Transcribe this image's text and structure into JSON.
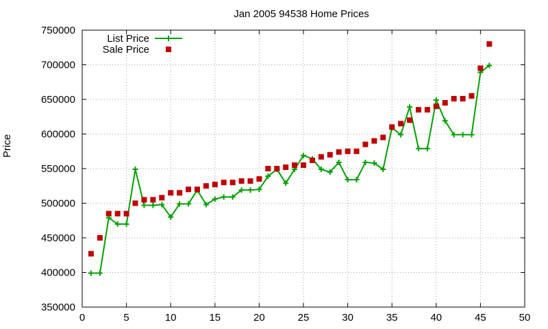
{
  "chart_data": {
    "type": "line",
    "title": "Jan 2005 94538 Home Prices",
    "xlabel": "",
    "ylabel": "Price",
    "xlim": [
      0,
      50
    ],
    "ylim": [
      350000,
      750000
    ],
    "xticks": [
      0,
      5,
      10,
      15,
      20,
      25,
      30,
      35,
      40,
      45,
      50
    ],
    "yticks": [
      350000,
      400000,
      450000,
      500000,
      550000,
      600000,
      650000,
      700000,
      750000
    ],
    "grid": true,
    "legend_position": "top-left",
    "series": [
      {
        "name": "List Price",
        "style": "line+cross",
        "color": "#00a000",
        "x": [
          1,
          2,
          3,
          4,
          5,
          6,
          7,
          8,
          9,
          10,
          11,
          12,
          13,
          14,
          15,
          16,
          17,
          18,
          19,
          20,
          21,
          22,
          23,
          24,
          25,
          26,
          27,
          28,
          29,
          30,
          31,
          32,
          33,
          34,
          35,
          36,
          37,
          38,
          39,
          40,
          41,
          42,
          43,
          44,
          45,
          46
        ],
        "y": [
          399000,
          399000,
          479000,
          469900,
          469900,
          549000,
          497000,
          497000,
          498000,
          480000,
          499000,
          499000,
          519000,
          498000,
          506000,
          509000,
          509000,
          519000,
          519000,
          520000,
          539000,
          549000,
          529000,
          549000,
          569000,
          564000,
          549000,
          545000,
          559000,
          534000,
          534000,
          559000,
          558000,
          549000,
          609000,
          599000,
          639000,
          579000,
          579000,
          649000,
          619000,
          599000,
          599000,
          599000,
          689000,
          699000
        ]
      },
      {
        "name": "Sale Price",
        "style": "points",
        "color": "#c00000",
        "x": [
          1,
          2,
          3,
          4,
          5,
          6,
          7,
          8,
          9,
          10,
          11,
          12,
          13,
          14,
          15,
          16,
          17,
          18,
          19,
          20,
          21,
          22,
          23,
          24,
          25,
          26,
          27,
          28,
          29,
          30,
          31,
          32,
          33,
          34,
          35,
          36,
          37,
          38,
          39,
          40,
          41,
          42,
          43,
          44,
          45,
          46
        ],
        "y": [
          427000,
          450000,
          485000,
          485000,
          485000,
          500000,
          505000,
          505000,
          508000,
          515000,
          515000,
          520000,
          520000,
          525000,
          527000,
          530000,
          530000,
          532000,
          532000,
          535000,
          550000,
          550000,
          552000,
          555000,
          555000,
          562000,
          567000,
          570000,
          574000,
          575000,
          575000,
          585000,
          590000,
          595000,
          610000,
          615000,
          620000,
          635000,
          635000,
          640000,
          645000,
          651000,
          651000,
          655000,
          695000,
          730000
        ]
      }
    ]
  }
}
